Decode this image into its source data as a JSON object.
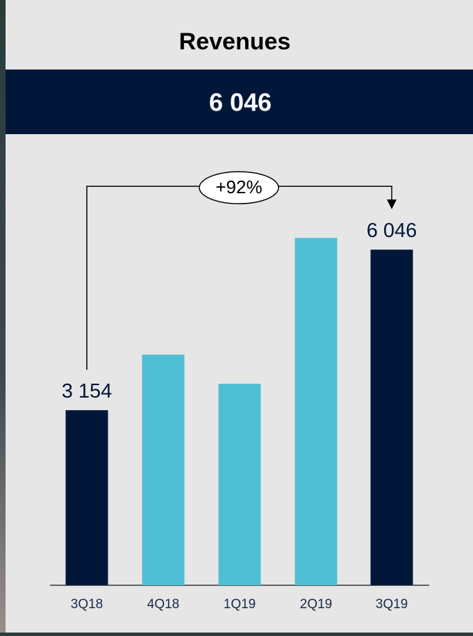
{
  "chart_data": {
    "type": "bar",
    "title": "Revenues",
    "highlight": "6 046",
    "categories": [
      "3Q18",
      "4Q18",
      "1Q19",
      "2Q19",
      "3Q19"
    ],
    "values": [
      3154,
      4155,
      3630,
      6258,
      6046
    ],
    "value_labels": [
      "3 154",
      null,
      null,
      null,
      "6 046"
    ],
    "colors": [
      "#00173a",
      "#50bfd4",
      "#50bfd4",
      "#50bfd4",
      "#00173a"
    ],
    "ylim": [
      0,
      7000
    ],
    "annotation": "+92%"
  }
}
